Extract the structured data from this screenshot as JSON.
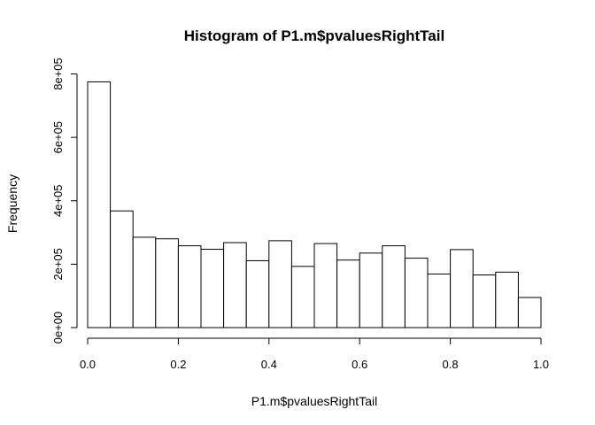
{
  "chart_data": {
    "type": "bar",
    "title": "Histogram of P1.m$pvaluesRightTail",
    "xlabel": "P1.m$pvaluesRightTail",
    "ylabel": "Frequency",
    "xlim": [
      0,
      1
    ],
    "ylim": [
      0,
      800000
    ],
    "x_ticks": [
      0,
      0.2,
      0.4,
      0.6,
      0.8,
      1
    ],
    "x_tick_labels": [
      "0.0",
      "0.2",
      "0.4",
      "0.6",
      "0.8",
      "1.0"
    ],
    "y_ticks": [
      0,
      200000,
      400000,
      600000,
      800000
    ],
    "y_tick_labels": [
      "0e+00",
      "2e+05",
      "4e+05",
      "6e+05",
      "8e+05"
    ],
    "bin_width": 0.05,
    "bin_starts": [
      0,
      0.05,
      0.1,
      0.15,
      0.2,
      0.25,
      0.3,
      0.35,
      0.4,
      0.45,
      0.5,
      0.55,
      0.6,
      0.65,
      0.7,
      0.75,
      0.8,
      0.85,
      0.9,
      0.95
    ],
    "values": [
      775000,
      368000,
      285000,
      280000,
      258000,
      247000,
      268000,
      211000,
      274000,
      193000,
      265000,
      213000,
      235000,
      258000,
      219000,
      169000,
      246000,
      166000,
      175000,
      95000
    ],
    "grid": false,
    "legend": "none"
  }
}
